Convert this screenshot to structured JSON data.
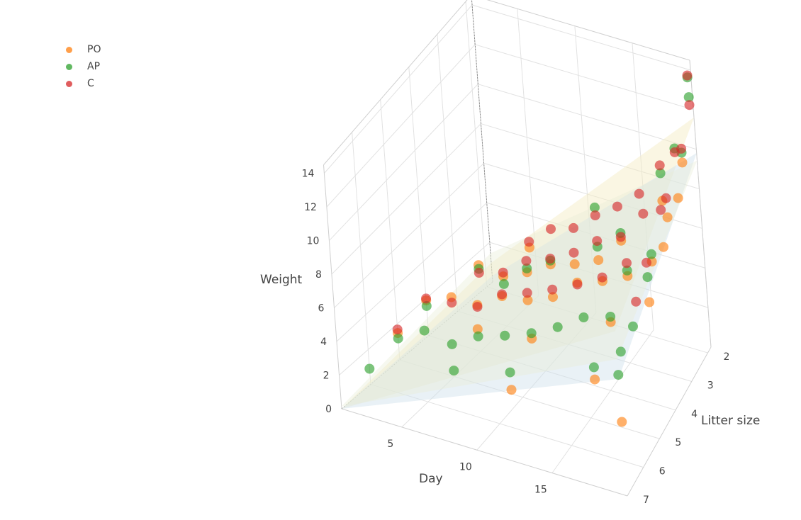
{
  "chart_data": {
    "type": "scatter",
    "title": "",
    "axes": {
      "x": {
        "label": "Day",
        "ticks": [
          "5",
          "10",
          "15"
        ],
        "range": [
          1,
          20
        ]
      },
      "y": {
        "label": "Litter size",
        "ticks": [
          "2",
          "3",
          "4",
          "5",
          "6",
          "7"
        ],
        "range": [
          1.8,
          7
        ]
      },
      "z": {
        "label": "Weight",
        "ticks": [
          "0",
          "2",
          "4",
          "6",
          "8",
          "10",
          "12",
          "14"
        ],
        "range": [
          0,
          14.5
        ]
      }
    },
    "legend": {
      "placement": "top-left"
    },
    "grid": true,
    "series": [
      {
        "name": "PO",
        "color": "#ff7f0e",
        "points": [
          {
            "day": 1,
            "litter": 4,
            "weight": 1.9
          },
          {
            "day": 1,
            "litter": 5,
            "weight": 1.5
          },
          {
            "day": 3,
            "litter": 3,
            "weight": 2.8
          },
          {
            "day": 3,
            "litter": 4,
            "weight": 2.5
          },
          {
            "day": 5,
            "litter": 2,
            "weight": 2.7
          },
          {
            "day": 5,
            "litter": 3,
            "weight": 2.6
          },
          {
            "day": 5,
            "litter": 4,
            "weight": 2.5
          },
          {
            "day": 7,
            "litter": 3,
            "weight": 3.2
          },
          {
            "day": 7,
            "litter": 4,
            "weight": 3.4
          },
          {
            "day": 7,
            "litter": 5,
            "weight": 3.1
          },
          {
            "day": 9,
            "litter": 3,
            "weight": 4.0
          },
          {
            "day": 9,
            "litter": 4,
            "weight": 3.6
          },
          {
            "day": 11,
            "litter": 3,
            "weight": 4.4
          },
          {
            "day": 11,
            "litter": 4,
            "weight": 4.2
          },
          {
            "day": 11,
            "litter": 5,
            "weight": 3.5
          },
          {
            "day": 11,
            "litter": 6,
            "weight": 2.2
          },
          {
            "day": 13,
            "litter": 3,
            "weight": 5.0
          },
          {
            "day": 13,
            "litter": 4,
            "weight": 5.4
          },
          {
            "day": 15,
            "litter": 3,
            "weight": 6.4
          },
          {
            "day": 15,
            "litter": 4,
            "weight": 5.9
          },
          {
            "day": 17,
            "litter": 2,
            "weight": 7.2
          },
          {
            "day": 17,
            "litter": 4,
            "weight": 6.6
          },
          {
            "day": 17,
            "litter": 5,
            "weight": 5.8
          },
          {
            "day": 17,
            "litter": 6,
            "weight": 4.3
          },
          {
            "day": 19,
            "litter": 3,
            "weight": 8.4
          },
          {
            "day": 19,
            "litter": 4,
            "weight": 7.8
          },
          {
            "day": 19,
            "litter": 2,
            "weight": 9.5
          },
          {
            "day": 20,
            "litter": 3,
            "weight": 9.6
          },
          {
            "day": 20,
            "litter": 4,
            "weight": 8.8
          },
          {
            "day": 20,
            "litter": 5,
            "weight": 7.6
          },
          {
            "day": 20,
            "litter": 7,
            "weight": 4.4
          }
        ]
      },
      {
        "name": "AP",
        "color": "#2ca02c",
        "points": [
          {
            "day": 1,
            "litter": 4,
            "weight": 1.6
          },
          {
            "day": 1,
            "litter": 5,
            "weight": 1.2
          },
          {
            "day": 1,
            "litter": 6,
            "weight": 0.9
          },
          {
            "day": 3,
            "litter": 3,
            "weight": 2.6
          },
          {
            "day": 3,
            "litter": 5,
            "weight": 2.1
          },
          {
            "day": 5,
            "litter": 3,
            "weight": 2.2
          },
          {
            "day": 5,
            "litter": 5,
            "weight": 1.8
          },
          {
            "day": 7,
            "litter": 3,
            "weight": 3.4
          },
          {
            "day": 7,
            "litter": 5,
            "weight": 2.7
          },
          {
            "day": 7,
            "litter": 6,
            "weight": 2.3
          },
          {
            "day": 9,
            "litter": 3,
            "weight": 4.2
          },
          {
            "day": 9,
            "litter": 5,
            "weight": 3.2
          },
          {
            "day": 11,
            "litter": 2,
            "weight": 5.8
          },
          {
            "day": 11,
            "litter": 5,
            "weight": 3.8
          },
          {
            "day": 11,
            "litter": 6,
            "weight": 3.2
          },
          {
            "day": 13,
            "litter": 3,
            "weight": 5.7
          },
          {
            "day": 13,
            "litter": 5,
            "weight": 4.6
          },
          {
            "day": 15,
            "litter": 3,
            "weight": 6.8
          },
          {
            "day": 15,
            "litter": 5,
            "weight": 5.6
          },
          {
            "day": 17,
            "litter": 2,
            "weight": 8.6
          },
          {
            "day": 17,
            "litter": 4,
            "weight": 6.9
          },
          {
            "day": 17,
            "litter": 5,
            "weight": 6.1
          },
          {
            "day": 17,
            "litter": 6,
            "weight": 5.0
          },
          {
            "day": 19,
            "litter": 2,
            "weight": 10.0
          },
          {
            "day": 19,
            "litter": 4,
            "weight": 8.2
          },
          {
            "day": 19,
            "litter": 6,
            "weight": 6.4
          },
          {
            "day": 20,
            "litter": 2,
            "weight": 14.0
          },
          {
            "day": 20,
            "litter": 2,
            "weight": 13.0
          },
          {
            "day": 20,
            "litter": 3,
            "weight": 12.2
          },
          {
            "day": 20,
            "litter": 5,
            "weight": 9.0
          },
          {
            "day": 20,
            "litter": 6,
            "weight": 8.1
          },
          {
            "day": 20,
            "litter": 7,
            "weight": 7.2
          }
        ]
      },
      {
        "name": "C",
        "color": "#d62728",
        "points": [
          {
            "day": 1,
            "litter": 4,
            "weight": 2.0
          },
          {
            "day": 1,
            "litter": 5,
            "weight": 1.7
          },
          {
            "day": 3,
            "litter": 3,
            "weight": 2.4
          },
          {
            "day": 3,
            "litter": 4,
            "weight": 2.2
          },
          {
            "day": 5,
            "litter": 2,
            "weight": 3.0
          },
          {
            "day": 5,
            "litter": 3,
            "weight": 2.8
          },
          {
            "day": 5,
            "litter": 4,
            "weight": 2.4
          },
          {
            "day": 7,
            "litter": 2,
            "weight": 4.0
          },
          {
            "day": 7,
            "litter": 3,
            "weight": 3.8
          },
          {
            "day": 7,
            "litter": 4,
            "weight": 3.5
          },
          {
            "day": 9,
            "litter": 2,
            "weight": 4.4
          },
          {
            "day": 9,
            "litter": 3,
            "weight": 4.3
          },
          {
            "day": 9,
            "litter": 4,
            "weight": 4.0
          },
          {
            "day": 11,
            "litter": 2,
            "weight": 5.4
          },
          {
            "day": 11,
            "litter": 3,
            "weight": 5.0
          },
          {
            "day": 11,
            "litter": 4,
            "weight": 4.6
          },
          {
            "day": 13,
            "litter": 2,
            "weight": 6.2
          },
          {
            "day": 13,
            "litter": 3,
            "weight": 6.0
          },
          {
            "day": 13,
            "litter": 4,
            "weight": 5.3
          },
          {
            "day": 15,
            "litter": 2,
            "weight": 7.2
          },
          {
            "day": 15,
            "litter": 3,
            "weight": 6.6
          },
          {
            "day": 15,
            "litter": 4,
            "weight": 6.1
          },
          {
            "day": 17,
            "litter": 2,
            "weight": 9.0
          },
          {
            "day": 17,
            "litter": 3,
            "weight": 8.2
          },
          {
            "day": 17,
            "litter": 4,
            "weight": 7.3
          },
          {
            "day": 19,
            "litter": 2,
            "weight": 10.2
          },
          {
            "day": 19,
            "litter": 3,
            "weight": 9.4
          },
          {
            "day": 19,
            "litter": 5,
            "weight": 7.4
          },
          {
            "day": 20,
            "litter": 2,
            "weight": 12.6
          },
          {
            "day": 20,
            "litter": 2,
            "weight": 14.1
          },
          {
            "day": 20,
            "litter": 3,
            "weight": 12.0
          },
          {
            "day": 20,
            "litter": 4,
            "weight": 10.8
          },
          {
            "day": 20,
            "litter": 5,
            "weight": 9.8
          }
        ]
      }
    ],
    "surfaces": [
      {
        "color": "#f5ecc0",
        "opacity": 0.45
      },
      {
        "color": "#cfe1ea",
        "opacity": 0.45
      },
      {
        "color": "#e8eed8",
        "opacity": 0.4
      }
    ]
  }
}
